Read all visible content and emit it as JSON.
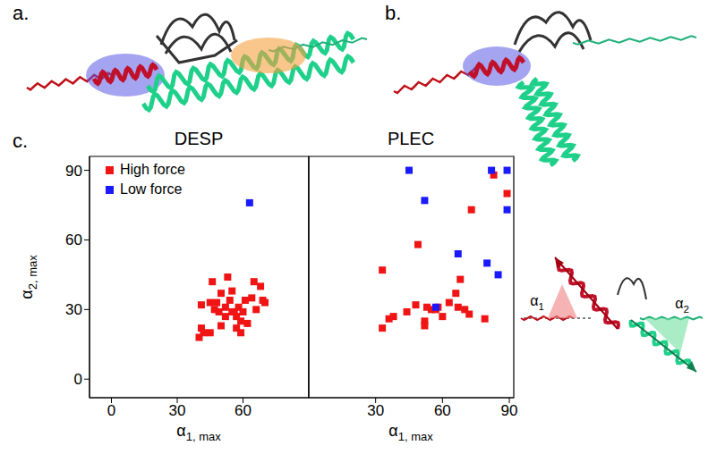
{
  "figure": {
    "panel_labels": [
      "a.",
      "b.",
      "c."
    ],
    "schematic_labels": [
      "α1",
      "α2"
    ]
  },
  "chart_data": [
    {
      "type": "scatter",
      "title": "DESP",
      "x_label": "α1, max",
      "y_label": "α2, max",
      "xlim": [
        -10,
        90
      ],
      "xticks": [
        0,
        30,
        60
      ],
      "ylim": [
        -8,
        96
      ],
      "yticks": [
        0,
        30,
        60,
        90
      ],
      "legend": "top-left",
      "series": [
        {
          "name": "High force",
          "color": "#f01414",
          "marker": "square",
          "x": [
            40,
            41,
            42,
            45,
            41,
            45,
            46,
            47,
            49,
            50,
            52,
            50,
            53,
            54,
            55,
            56,
            57,
            57,
            58,
            59,
            59,
            60,
            61,
            62,
            64,
            65,
            66,
            68,
            69,
            70,
            55,
            52,
            48
          ],
          "values": [
            18,
            22,
            20,
            20,
            32,
            33,
            42,
            30,
            29,
            23,
            27,
            37,
            44,
            34,
            29,
            29,
            27,
            22,
            31,
            25,
            20,
            29,
            34,
            24,
            35,
            42,
            30,
            40,
            34,
            33,
            38,
            31,
            33
          ]
        },
        {
          "name": "Low force",
          "color": "#1a1aff",
          "marker": "square",
          "x": [
            63
          ],
          "values": [
            76
          ]
        }
      ]
    },
    {
      "type": "scatter",
      "title": "PLEC",
      "x_label": "α1, max",
      "xlim": [
        0,
        92
      ],
      "xticks": [
        30,
        60,
        90
      ],
      "ylim": [
        -8,
        96
      ],
      "yticks": [
        0,
        30,
        60,
        90
      ],
      "tick_labels": "x",
      "series": [
        {
          "name": "High force",
          "color": "#f01414",
          "marker": "square",
          "x": [
            33,
            33,
            36,
            38,
            44,
            48,
            49,
            52,
            52,
            53,
            55,
            57,
            58,
            60,
            63,
            66,
            67,
            68,
            70,
            72,
            73,
            79,
            83,
            89
          ],
          "values": [
            22,
            47,
            26,
            27,
            29,
            32,
            58,
            25,
            23,
            31,
            30,
            30,
            31,
            27,
            33,
            37,
            31,
            43,
            30,
            28,
            73,
            26,
            88,
            80
          ]
        },
        {
          "name": "Low force",
          "color": "#1a1aff",
          "marker": "square",
          "x": [
            45,
            52,
            57,
            67,
            80,
            82,
            85,
            89,
            89
          ],
          "values": [
            90,
            77,
            31,
            54,
            50,
            90,
            45,
            90,
            73
          ]
        }
      ]
    }
  ]
}
